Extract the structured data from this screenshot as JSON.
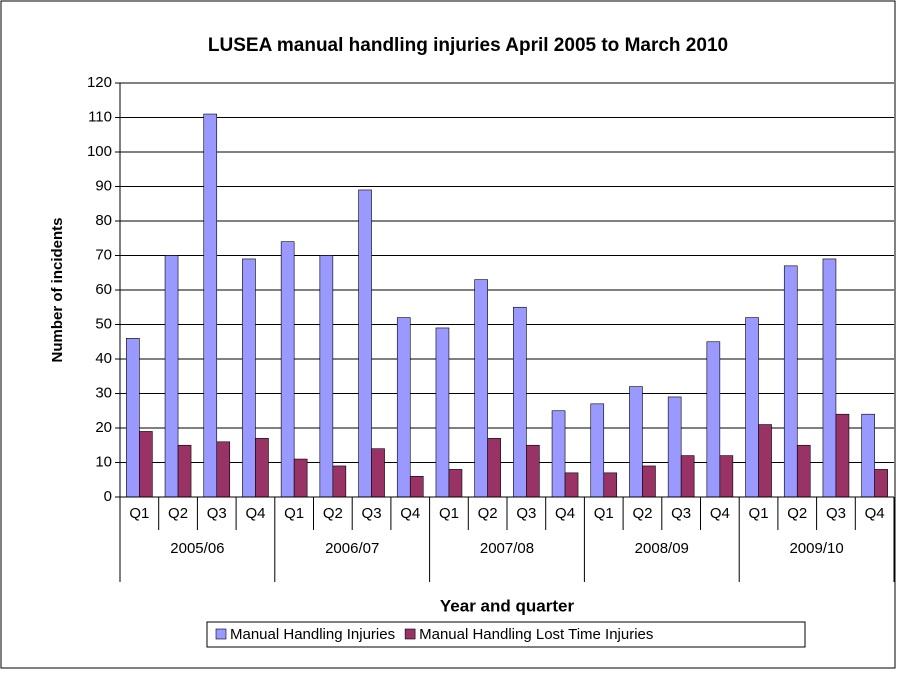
{
  "chart_data": {
    "type": "bar",
    "title": "LUSEA manual handling injuries April 2005 to March 2010",
    "x_label": "Year and quarter",
    "y_label": "Number of incidents",
    "categories": [
      "Q1",
      "Q2",
      "Q3",
      "Q4",
      "Q1",
      "Q2",
      "Q3",
      "Q4",
      "Q1",
      "Q2",
      "Q3",
      "Q4",
      "Q1",
      "Q2",
      "Q3",
      "Q4",
      "Q1",
      "Q2",
      "Q3",
      "Q4"
    ],
    "category_groups": [
      "2005/06",
      "2006/07",
      "2007/08",
      "2008/09",
      "2009/10"
    ],
    "series": [
      {
        "name": "Manual Handling Injuries",
        "color": "#9999ff",
        "values": [
          46,
          70,
          111,
          69,
          74,
          70,
          89,
          52,
          49,
          63,
          55,
          25,
          27,
          32,
          29,
          45,
          52,
          67,
          69,
          24
        ]
      },
      {
        "name": "Manual Handling Lost Time Injuries",
        "color": "#993366",
        "values": [
          19,
          15,
          16,
          17,
          11,
          9,
          14,
          6,
          8,
          17,
          15,
          7,
          7,
          9,
          12,
          12,
          21,
          15,
          24,
          8
        ]
      }
    ],
    "ylim": [
      0,
      120
    ],
    "yticks": [
      0,
      10,
      20,
      30,
      40,
      50,
      60,
      70,
      80,
      90,
      100,
      110,
      120
    ],
    "grid": true,
    "legend": "bottom"
  }
}
